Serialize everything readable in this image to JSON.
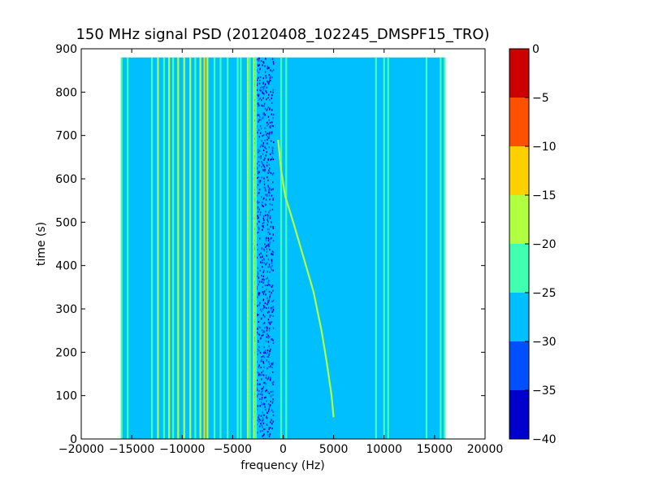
{
  "chart_data": {
    "type": "heatmap",
    "title": "150 MHz signal PSD (20120408_102245_DMSPF15_TRO)",
    "xlabel": "frequency (Hz)",
    "ylabel": "time (s)",
    "xlim": [
      -20000,
      20000
    ],
    "ylim": [
      0,
      900
    ],
    "x_ticks": [
      -20000,
      -15000,
      -10000,
      -5000,
      0,
      5000,
      10000,
      15000,
      20000
    ],
    "x_tick_labels": [
      "−20000",
      "−15000",
      "−10000",
      "−5000",
      "0",
      "5000",
      "10000",
      "15000",
      "20000"
    ],
    "y_ticks": [
      0,
      100,
      200,
      300,
      400,
      500,
      600,
      700,
      800,
      900
    ],
    "y_tick_labels": [
      "0",
      "100",
      "200",
      "300",
      "400",
      "500",
      "600",
      "700",
      "800",
      "900"
    ],
    "data_extent": {
      "x": [
        -16000,
        16000
      ],
      "y": [
        0,
        880
      ]
    },
    "background_level_db": -27.5,
    "colorbar": {
      "levels": [
        -40,
        -35,
        -30,
        -25,
        -20,
        -15,
        -10,
        -5,
        0
      ],
      "tick_labels": [
        "−40",
        "−35",
        "−30",
        "−25",
        "−20",
        "−15",
        "−10",
        "−5",
        "0"
      ],
      "colors": [
        "#0000cd",
        "#0050ff",
        "#00bfff",
        "#40ffb0",
        "#b0ff40",
        "#ffd000",
        "#ff5000",
        "#cd0000"
      ]
    },
    "vertical_lines": [
      {
        "f": -16000,
        "level": -22.5
      },
      {
        "f": -15400,
        "level": -22.5
      },
      {
        "f": -13000,
        "level": -22.5
      },
      {
        "f": -12400,
        "level": -17.5
      },
      {
        "f": -11800,
        "level": -22.5
      },
      {
        "f": -11300,
        "level": -17.5
      },
      {
        "f": -10900,
        "level": -22.5
      },
      {
        "f": -10400,
        "level": -17.5
      },
      {
        "f": -9800,
        "level": -17.5
      },
      {
        "f": -9200,
        "level": -17.5
      },
      {
        "f": -8700,
        "level": -22.5
      },
      {
        "f": -8200,
        "level": -17.5
      },
      {
        "f": -7800,
        "level": -12.5
      },
      {
        "f": -7500,
        "level": -17.5
      },
      {
        "f": -6800,
        "level": -22.5
      },
      {
        "f": -6200,
        "level": -22.5
      },
      {
        "f": -5500,
        "level": -22.5
      },
      {
        "f": -4500,
        "level": -22.5
      },
      {
        "f": -4200,
        "level": -22.5
      },
      {
        "f": -3500,
        "level": -17.5
      },
      {
        "f": -3300,
        "level": -22.5
      },
      {
        "f": -2900,
        "level": -17.5
      },
      {
        "f": -2700,
        "level": -22.5
      },
      {
        "f": -200,
        "level": -22.5
      },
      {
        "f": 300,
        "level": -22.5
      },
      {
        "f": 9200,
        "level": -22.5
      },
      {
        "f": 10000,
        "level": -22.5
      },
      {
        "f": 10400,
        "level": -22.5
      },
      {
        "f": 14200,
        "level": -22.5
      },
      {
        "f": 15600,
        "level": -22.5
      },
      {
        "f": 16000,
        "level": -22.5
      }
    ],
    "drifting_signal": {
      "level": -17.5,
      "points": [
        {
          "f": -500,
          "t": 690
        },
        {
          "f": -200,
          "t": 620
        },
        {
          "f": 200,
          "t": 560
        },
        {
          "f": 1000,
          "t": 500
        },
        {
          "f": 2000,
          "t": 420
        },
        {
          "f": 3000,
          "t": 340
        },
        {
          "f": 3800,
          "t": 250
        },
        {
          "f": 4300,
          "t": 180
        },
        {
          "f": 4800,
          "t": 100
        },
        {
          "f": 5000,
          "t": 50
        }
      ]
    },
    "noise_band": {
      "f": [
        -3000,
        -1000
      ],
      "level": -32.5
    }
  }
}
